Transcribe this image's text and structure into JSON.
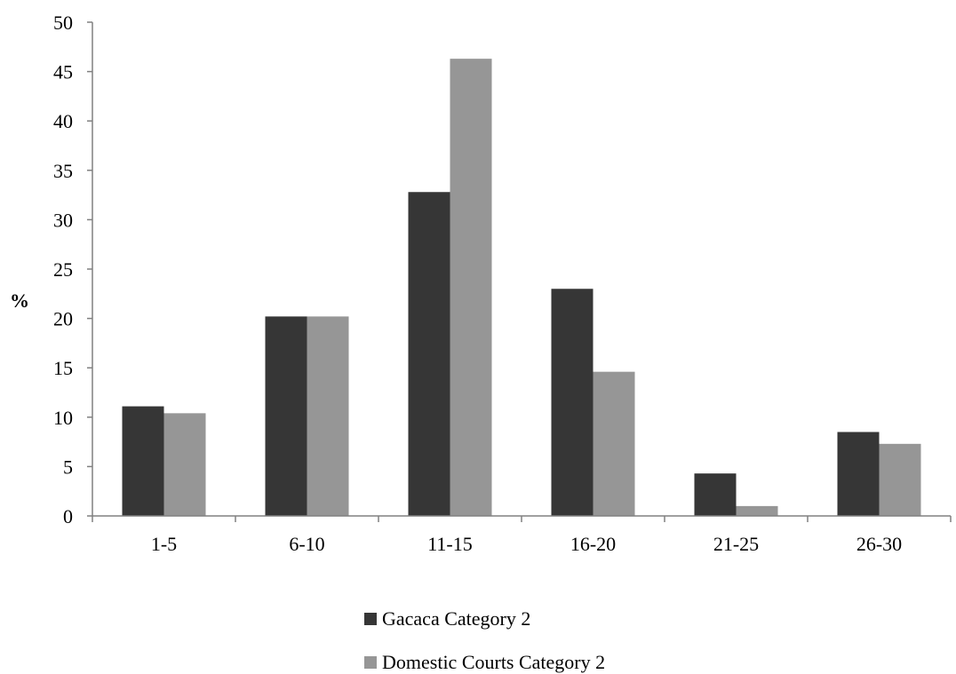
{
  "chart_data": {
    "type": "bar",
    "title": "",
    "xlabel": "",
    "ylabel": "%",
    "ylim": [
      0,
      50
    ],
    "yticks": [
      0,
      5,
      10,
      15,
      20,
      25,
      30,
      35,
      40,
      45,
      50
    ],
    "categories": [
      "1-5",
      "6-10",
      "11-15",
      "16-20",
      "21-25",
      "26-30"
    ],
    "series": [
      {
        "name": "Gacaca Category 2",
        "color": "#363636",
        "values": [
          11.1,
          20.2,
          32.8,
          23.0,
          4.3,
          8.5
        ]
      },
      {
        "name": "Domestic Courts Category 2",
        "color": "#969696",
        "values": [
          10.4,
          20.2,
          46.3,
          14.6,
          1.0,
          7.3
        ]
      }
    ],
    "grid": false,
    "legend_position": "bottom-center"
  }
}
